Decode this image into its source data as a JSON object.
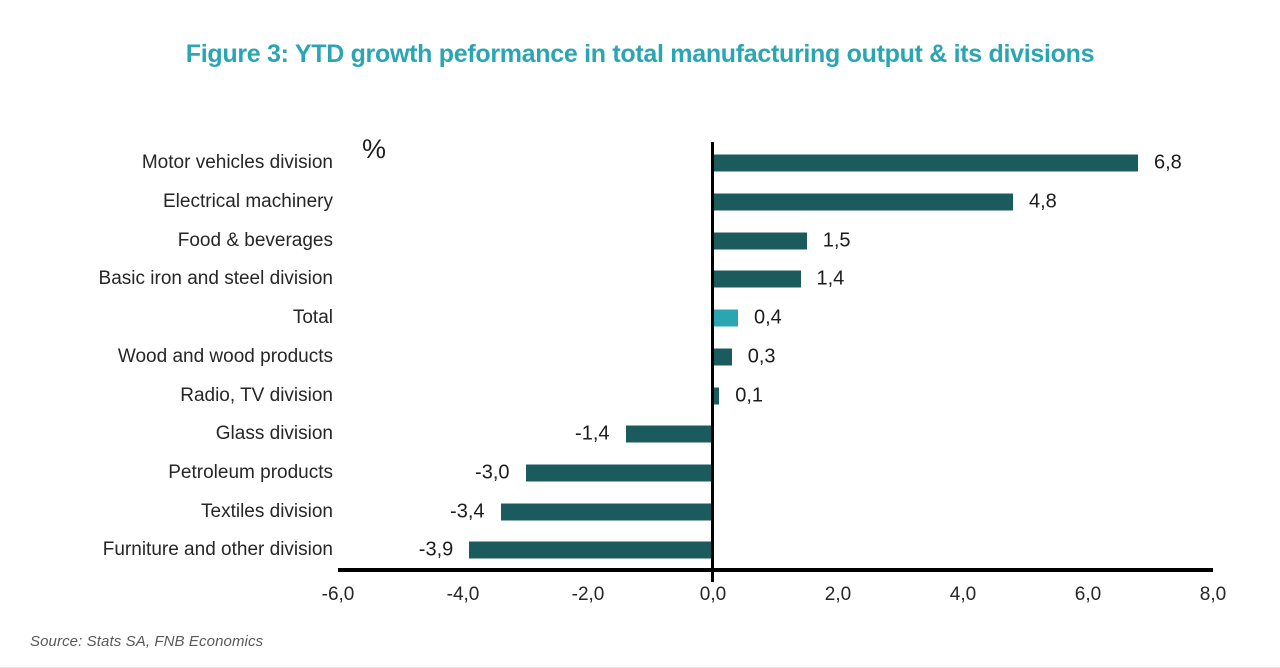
{
  "title": "Figure 3: YTD growth peformance in total manufacturing output & its divisions",
  "source": "Source: Stats SA, FNB Economics",
  "colors": {
    "accent_teal": "#2AA6B2",
    "bar_dark": "#1B5B5E",
    "axis_black": "#000000",
    "text_dark": "#262626",
    "source_gray": "#595959"
  },
  "chart_data": {
    "type": "bar",
    "orientation": "horizontal",
    "title": "Figure 3: YTD growth peformance in total manufacturing output & its divisions",
    "unit_label": "%",
    "categories": [
      "Motor vehicles division",
      "Electrical machinery",
      "Food & beverages",
      "Basic iron and steel division",
      "Total",
      "Wood and wood products",
      "Radio, TV division",
      "Glass division",
      "Petroleum products",
      "Textiles division",
      "Furniture and other division"
    ],
    "values": [
      6.8,
      4.8,
      1.5,
      1.4,
      0.4,
      0.3,
      0.1,
      -1.4,
      -3.0,
      -3.4,
      -3.9
    ],
    "value_labels": [
      "6,8",
      "4,8",
      "1,5",
      "1,4",
      "0,4",
      "0,3",
      "0,1",
      "-1,4",
      "-3,0",
      "-3,4",
      "-3,9"
    ],
    "highlight_category": "Total",
    "xlim": [
      -6,
      8
    ],
    "x_tick_values": [
      -6,
      -4,
      -2,
      0,
      2,
      4,
      6,
      8
    ],
    "x_tick_labels": [
      "-6,0",
      "-4,0",
      "-2,0",
      "0,0",
      "2,0",
      "4,0",
      "6,0",
      "8,0"
    ],
    "grid": false,
    "legend": false,
    "xlabel": "",
    "ylabel": "%"
  }
}
